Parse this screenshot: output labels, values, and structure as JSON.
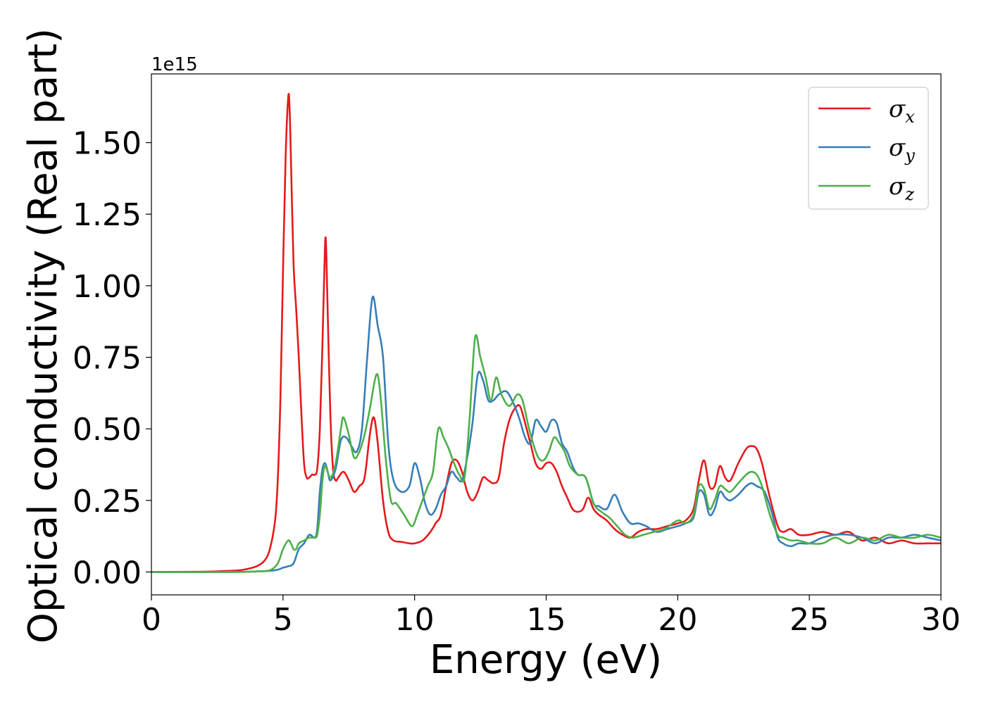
{
  "chart_data": {
    "type": "line",
    "title": "",
    "xlabel": "Energy (eV)",
    "ylabel": "Optical conductivity (Real part)",
    "y_offset_label": "1e15",
    "xlim": [
      0,
      30
    ],
    "ylim": [
      -0.08,
      1.74
    ],
    "x_ticks": [
      0,
      5,
      10,
      15,
      20,
      25,
      30
    ],
    "x_tick_labels": [
      "0",
      "5",
      "10",
      "15",
      "20",
      "25",
      "30"
    ],
    "y_ticks": [
      0.0,
      0.25,
      0.5,
      0.75,
      1.0,
      1.25,
      1.5
    ],
    "y_tick_labels": [
      "0.00",
      "0.25",
      "0.50",
      "0.75",
      "1.00",
      "1.25",
      "1.50"
    ],
    "grid": false,
    "legend_position": "top-right",
    "series": [
      {
        "name": "σx",
        "legend_symbol": "σ",
        "legend_subscript": "x",
        "color": "#e41a1c",
        "x": [
          0,
          2,
          3,
          3.5,
          4,
          4.3,
          4.5,
          4.7,
          4.8,
          4.9,
          5.0,
          5.1,
          5.2,
          5.25,
          5.3,
          5.4,
          5.5,
          5.6,
          5.7,
          5.8,
          5.9,
          6.0,
          6.1,
          6.2,
          6.3,
          6.4,
          6.5,
          6.6,
          6.65,
          6.7,
          6.8,
          6.9,
          7.0,
          7.1,
          7.3,
          7.5,
          7.7,
          7.9,
          8.1,
          8.3,
          8.45,
          8.6,
          8.8,
          9.0,
          9.2,
          9.5,
          9.8,
          10.0,
          10.3,
          10.6,
          10.8,
          11.0,
          11.2,
          11.4,
          11.6,
          11.8,
          12.0,
          12.2,
          12.4,
          12.6,
          12.8,
          13.0,
          13.2,
          13.4,
          13.6,
          13.8,
          14.0,
          14.2,
          14.4,
          14.6,
          14.8,
          15.0,
          15.2,
          15.4,
          15.6,
          15.8,
          16.0,
          16.2,
          16.4,
          16.6,
          16.8,
          17.0,
          17.3,
          17.6,
          17.9,
          18.2,
          18.5,
          18.8,
          19.2,
          19.6,
          20.0,
          20.3,
          20.6,
          20.8,
          21.0,
          21.2,
          21.4,
          21.6,
          21.8,
          22.0,
          22.3,
          22.6,
          22.8,
          23.0,
          23.2,
          23.5,
          23.8,
          24.0,
          24.3,
          24.6,
          25.0,
          25.5,
          26.0,
          26.5,
          27.0,
          27.5,
          28.0,
          28.5,
          29.0,
          29.5,
          30.0
        ],
        "y": [
          0,
          0.001,
          0.004,
          0.008,
          0.02,
          0.04,
          0.08,
          0.18,
          0.32,
          0.6,
          1.05,
          1.45,
          1.66,
          1.62,
          1.45,
          1.08,
          0.92,
          0.75,
          0.55,
          0.38,
          0.33,
          0.33,
          0.34,
          0.34,
          0.36,
          0.5,
          0.8,
          1.15,
          1.1,
          0.9,
          0.55,
          0.36,
          0.32,
          0.33,
          0.35,
          0.32,
          0.28,
          0.3,
          0.33,
          0.48,
          0.54,
          0.45,
          0.25,
          0.14,
          0.11,
          0.105,
          0.1,
          0.1,
          0.11,
          0.14,
          0.17,
          0.2,
          0.3,
          0.38,
          0.39,
          0.35,
          0.28,
          0.25,
          0.28,
          0.33,
          0.32,
          0.31,
          0.33,
          0.45,
          0.53,
          0.57,
          0.58,
          0.52,
          0.45,
          0.38,
          0.36,
          0.38,
          0.38,
          0.35,
          0.3,
          0.26,
          0.22,
          0.21,
          0.22,
          0.26,
          0.22,
          0.2,
          0.18,
          0.15,
          0.13,
          0.12,
          0.14,
          0.15,
          0.15,
          0.16,
          0.17,
          0.18,
          0.22,
          0.32,
          0.39,
          0.3,
          0.3,
          0.37,
          0.33,
          0.32,
          0.38,
          0.43,
          0.44,
          0.43,
          0.38,
          0.26,
          0.16,
          0.14,
          0.15,
          0.13,
          0.13,
          0.14,
          0.13,
          0.14,
          0.11,
          0.12,
          0.1,
          0.11,
          0.1,
          0.1,
          0.1
        ]
      },
      {
        "name": "σy",
        "legend_symbol": "σ",
        "legend_subscript": "y",
        "color": "#377eb8",
        "x": [
          0,
          3,
          4,
          4.5,
          4.8,
          5.0,
          5.2,
          5.4,
          5.6,
          5.8,
          6.0,
          6.2,
          6.3,
          6.4,
          6.5,
          6.6,
          6.7,
          6.8,
          7.0,
          7.2,
          7.4,
          7.6,
          7.8,
          8.0,
          8.2,
          8.4,
          8.6,
          8.8,
          9.0,
          9.2,
          9.5,
          9.8,
          10.0,
          10.2,
          10.4,
          10.6,
          10.8,
          11.0,
          11.2,
          11.4,
          11.6,
          11.8,
          12.0,
          12.2,
          12.4,
          12.6,
          12.8,
          13.0,
          13.2,
          13.5,
          13.8,
          14.0,
          14.2,
          14.4,
          14.6,
          14.8,
          15.0,
          15.2,
          15.4,
          15.6,
          15.8,
          16.0,
          16.2,
          16.5,
          16.8,
          17.0,
          17.3,
          17.6,
          17.9,
          18.2,
          18.5,
          18.8,
          19.2,
          19.6,
          20.0,
          20.3,
          20.6,
          20.8,
          21.0,
          21.2,
          21.4,
          21.6,
          21.8,
          22.0,
          22.3,
          22.6,
          22.8,
          23.0,
          23.3,
          23.6,
          23.8,
          24.0,
          24.3,
          24.6,
          25.0,
          25.5,
          26.0,
          26.5,
          27.0,
          27.5,
          28.0,
          28.5,
          29.0,
          29.5,
          30.0
        ],
        "y": [
          0,
          0,
          0.002,
          0.004,
          0.008,
          0.015,
          0.02,
          0.03,
          0.08,
          0.1,
          0.13,
          0.12,
          0.15,
          0.28,
          0.36,
          0.38,
          0.35,
          0.32,
          0.36,
          0.46,
          0.47,
          0.44,
          0.42,
          0.5,
          0.75,
          0.96,
          0.86,
          0.75,
          0.45,
          0.32,
          0.28,
          0.3,
          0.38,
          0.33,
          0.24,
          0.2,
          0.22,
          0.27,
          0.3,
          0.35,
          0.33,
          0.32,
          0.4,
          0.52,
          0.69,
          0.67,
          0.6,
          0.6,
          0.62,
          0.63,
          0.58,
          0.53,
          0.47,
          0.45,
          0.53,
          0.51,
          0.49,
          0.53,
          0.52,
          0.45,
          0.42,
          0.37,
          0.34,
          0.33,
          0.24,
          0.23,
          0.22,
          0.27,
          0.21,
          0.17,
          0.17,
          0.16,
          0.14,
          0.15,
          0.16,
          0.17,
          0.19,
          0.28,
          0.27,
          0.2,
          0.22,
          0.28,
          0.26,
          0.25,
          0.27,
          0.3,
          0.31,
          0.3,
          0.28,
          0.2,
          0.12,
          0.1,
          0.09,
          0.1,
          0.1,
          0.12,
          0.13,
          0.13,
          0.12,
          0.1,
          0.12,
          0.12,
          0.13,
          0.12,
          0.11
        ]
      },
      {
        "name": "σz",
        "legend_symbol": "σ",
        "legend_subscript": "z",
        "color": "#4daf4a",
        "x": [
          0,
          3,
          4,
          4.5,
          4.8,
          5.0,
          5.2,
          5.3,
          5.4,
          5.5,
          5.6,
          5.8,
          6.0,
          6.2,
          6.3,
          6.4,
          6.5,
          6.6,
          6.8,
          7.0,
          7.2,
          7.3,
          7.5,
          7.7,
          7.9,
          8.1,
          8.3,
          8.55,
          8.7,
          8.9,
          9.1,
          9.3,
          9.6,
          9.9,
          10.1,
          10.3,
          10.5,
          10.7,
          10.9,
          11.1,
          11.3,
          11.5,
          11.7,
          11.9,
          12.1,
          12.3,
          12.5,
          12.7,
          12.9,
          13.1,
          13.3,
          13.6,
          13.9,
          14.1,
          14.3,
          14.5,
          14.7,
          14.9,
          15.1,
          15.3,
          15.5,
          15.7,
          15.9,
          16.2,
          16.5,
          16.8,
          17.1,
          17.4,
          17.7,
          18.0,
          18.3,
          18.7,
          19.1,
          19.5,
          20.0,
          20.3,
          20.6,
          20.8,
          21.0,
          21.2,
          21.4,
          21.6,
          21.8,
          22.0,
          22.3,
          22.6,
          22.8,
          23.0,
          23.2,
          23.5,
          23.8,
          24.0,
          24.3,
          24.6,
          25.0,
          25.5,
          26.0,
          26.5,
          27.0,
          27.5,
          28.0,
          28.5,
          29.0,
          29.5,
          30.0
        ],
        "y": [
          0,
          0,
          0.002,
          0.006,
          0.03,
          0.08,
          0.11,
          0.1,
          0.08,
          0.08,
          0.1,
          0.11,
          0.12,
          0.12,
          0.13,
          0.2,
          0.32,
          0.37,
          0.33,
          0.38,
          0.5,
          0.54,
          0.48,
          0.4,
          0.42,
          0.48,
          0.57,
          0.69,
          0.62,
          0.4,
          0.25,
          0.24,
          0.2,
          0.16,
          0.2,
          0.25,
          0.3,
          0.35,
          0.5,
          0.47,
          0.43,
          0.38,
          0.34,
          0.33,
          0.55,
          0.82,
          0.75,
          0.68,
          0.6,
          0.68,
          0.62,
          0.58,
          0.62,
          0.6,
          0.52,
          0.45,
          0.4,
          0.39,
          0.42,
          0.47,
          0.45,
          0.42,
          0.37,
          0.34,
          0.33,
          0.24,
          0.21,
          0.19,
          0.16,
          0.13,
          0.12,
          0.13,
          0.14,
          0.15,
          0.18,
          0.17,
          0.2,
          0.3,
          0.29,
          0.22,
          0.25,
          0.3,
          0.29,
          0.28,
          0.31,
          0.34,
          0.35,
          0.34,
          0.3,
          0.2,
          0.13,
          0.12,
          0.11,
          0.11,
          0.1,
          0.1,
          0.12,
          0.1,
          0.12,
          0.11,
          0.13,
          0.12,
          0.12,
          0.13,
          0.12
        ]
      }
    ]
  }
}
